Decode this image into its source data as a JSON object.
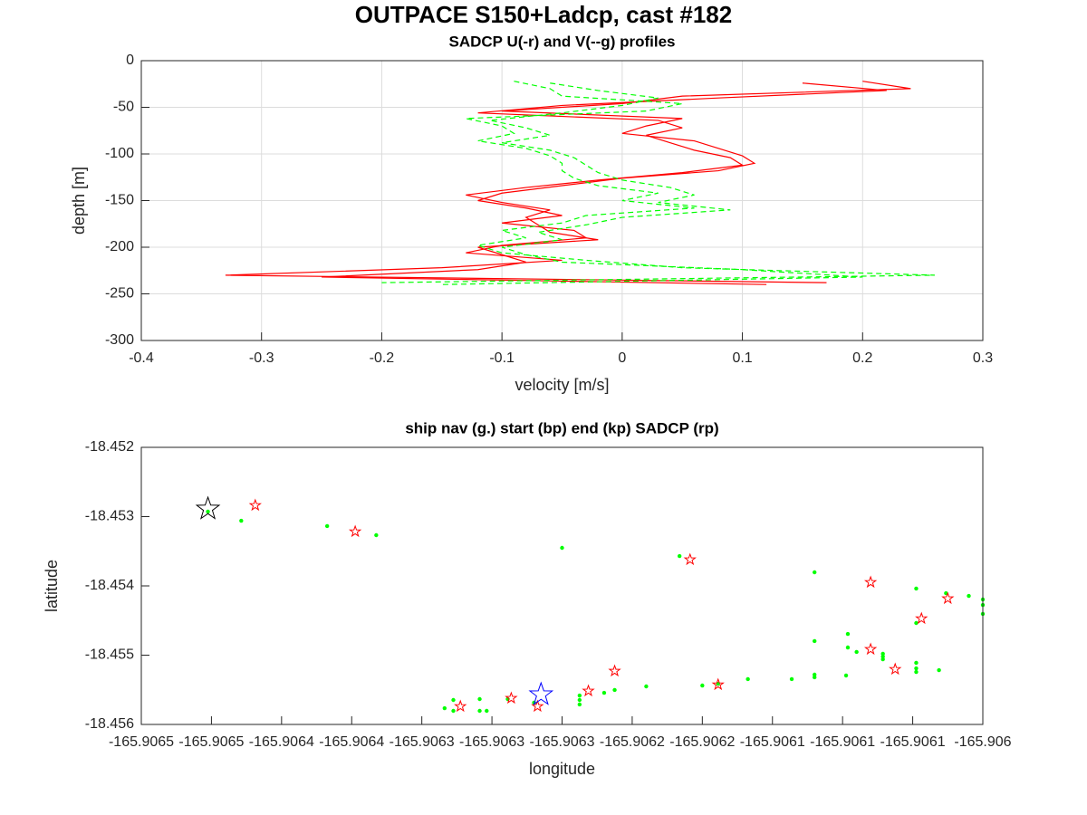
{
  "title": "OUTPACE S150+Ladcp, cast #182",
  "chart_data": [
    {
      "type": "line",
      "title": "SADCP U(-r) and V(--g) profiles",
      "x_label": "velocity [m/s]",
      "y_label": "depth [m]",
      "xlim": [
        -0.4,
        0.3
      ],
      "xticks": [
        -0.4,
        -0.3,
        -0.2,
        -0.1,
        0,
        0.1,
        0.2,
        0.3
      ],
      "ylim": [
        -300,
        0
      ],
      "yticks": [
        -300,
        -250,
        -200,
        -150,
        -100,
        -50,
        0
      ],
      "grid": true,
      "series": [
        {
          "color": "#ff0000",
          "dash": "solid",
          "y": [
            -22,
            -30,
            -38,
            -46,
            -54,
            -62,
            -70,
            -78,
            -86,
            -94,
            -102,
            -110,
            -118,
            -126,
            -134,
            -142,
            -150,
            -158,
            -166,
            -174,
            -182,
            -190,
            -198,
            -206,
            -214,
            -222,
            -230,
            -238
          ],
          "x": [
            0.2,
            0.24,
            0.05,
            0.0,
            -0.1,
            0.05,
            0.02,
            0.0,
            0.06,
            0.08,
            0.1,
            0.11,
            0.08,
            0.0,
            -0.05,
            -0.1,
            -0.12,
            -0.08,
            -0.05,
            -0.1,
            -0.04,
            -0.03,
            -0.1,
            -0.13,
            -0.05,
            -0.15,
            -0.33,
            0.17
          ]
        },
        {
          "color": "#ff0000",
          "dash": "solid",
          "y": [
            -24,
            -32,
            -40,
            -48,
            -56,
            -64,
            -72,
            -80,
            -88,
            -96,
            -104,
            -112,
            -120,
            -128,
            -136,
            -144,
            -152,
            -160,
            -168,
            -176,
            -184,
            -192,
            -200,
            -208,
            -216,
            -224,
            -232,
            -240
          ],
          "x": [
            0.15,
            0.22,
            0.08,
            -0.05,
            -0.12,
            0.03,
            0.05,
            0.02,
            0.04,
            0.06,
            0.09,
            0.1,
            0.05,
            -0.02,
            -0.08,
            -0.13,
            -0.1,
            -0.06,
            -0.08,
            -0.07,
            -0.06,
            -0.02,
            -0.12,
            -0.1,
            -0.08,
            -0.12,
            -0.25,
            0.12
          ]
        },
        {
          "color": "#00ff00",
          "dash": "dashed",
          "y": [
            -22,
            -30,
            -38,
            -46,
            -54,
            -62,
            -70,
            -78,
            -86,
            -94,
            -102,
            -110,
            -118,
            -126,
            -134,
            -142,
            -150,
            -158,
            -166,
            -174,
            -182,
            -190,
            -198,
            -206,
            -214,
            -222,
            -230,
            -238
          ],
          "x": [
            -0.09,
            -0.06,
            -0.05,
            0.05,
            0.02,
            -0.13,
            -0.1,
            -0.09,
            -0.12,
            -0.08,
            -0.06,
            -0.05,
            -0.05,
            -0.04,
            -0.02,
            0.03,
            0.0,
            0.06,
            -0.03,
            -0.05,
            -0.1,
            -0.08,
            -0.12,
            -0.1,
            -0.03,
            0.05,
            0.26,
            -0.2
          ]
        },
        {
          "color": "#00ff00",
          "dash": "dashed",
          "y": [
            -24,
            -32,
            -40,
            -48,
            -56,
            -64,
            -72,
            -80,
            -88,
            -96,
            -104,
            -112,
            -120,
            -128,
            -136,
            -144,
            -152,
            -160,
            -168,
            -176,
            -184,
            -192,
            -200,
            -208,
            -216,
            -224,
            -232,
            -240
          ],
          "x": [
            -0.06,
            -0.02,
            0.03,
            0.0,
            -0.05,
            -0.11,
            -0.08,
            -0.06,
            -0.1,
            -0.06,
            -0.04,
            -0.03,
            -0.02,
            0.0,
            0.04,
            0.06,
            0.03,
            0.09,
            0.0,
            -0.03,
            -0.07,
            -0.05,
            -0.1,
            -0.08,
            -0.05,
            0.1,
            0.2,
            -0.15
          ]
        }
      ]
    },
    {
      "type": "scatter",
      "title": "ship nav (g.) start (bp) end (kp) SADCP (rp)",
      "x_label": "longitude",
      "y_label": "latitude",
      "xlim": [
        -165.9065,
        -165.90602
      ],
      "xticks": [
        {
          "value": -165.9065,
          "label": "-165.9065"
        },
        {
          "value": -165.90646,
          "label": "-165.9065"
        },
        {
          "value": -165.90642,
          "label": "-165.9064"
        },
        {
          "value": -165.90638,
          "label": "-165.9064"
        },
        {
          "value": -165.90634,
          "label": "-165.9063"
        },
        {
          "value": -165.9063,
          "label": "-165.9063"
        },
        {
          "value": -165.90626,
          "label": "-165.9063"
        },
        {
          "value": -165.90622,
          "label": "-165.9062"
        },
        {
          "value": -165.90618,
          "label": "-165.9062"
        },
        {
          "value": -165.90614,
          "label": "-165.9061"
        },
        {
          "value": -165.9061,
          "label": "-165.9061"
        },
        {
          "value": -165.90606,
          "label": "-165.9061"
        },
        {
          "value": -165.90602,
          "label": "-165.906"
        }
      ],
      "ylim": [
        -18.456,
        -18.452
      ],
      "yticks": [
        -18.456,
        -18.455,
        -18.454,
        -18.453,
        -18.452
      ],
      "grid": false,
      "series": [
        {
          "color": "#00ff00",
          "marker": "dot",
          "x": [
            -165.906462,
            -165.906443,
            -165.906394,
            -165.906366,
            -165.90626,
            -165.906193,
            -165.906116,
            -165.906058,
            -165.906058,
            -165.906041,
            -165.906028,
            -165.90602,
            -165.90602,
            -165.906097,
            -165.906116,
            -165.906097,
            -165.906092,
            -165.906077,
            -165.906077,
            -165.906058,
            -165.906058,
            -165.906045,
            -165.906098,
            -165.906116,
            -165.906129,
            -165.906154,
            -165.906171,
            -165.90618,
            -165.906212,
            -165.90623,
            -165.906236,
            -165.90625,
            -165.90625,
            -165.906276,
            -165.906291,
            -165.906307,
            -165.906307,
            -165.906322,
            -165.906322,
            -165.906327,
            -165.906303,
            -165.90602,
            -165.906058,
            -165.906077,
            -165.906116,
            -165.90625
          ],
          "y": [
            -18.452928,
            -18.453059,
            -18.453137,
            -18.453268,
            -18.453451,
            -18.453569,
            -18.453804,
            -18.454039,
            -18.454536,
            -18.454105,
            -18.454144,
            -18.454196,
            -18.454405,
            -18.454693,
            -18.454797,
            -18.454889,
            -18.454954,
            -18.45498,
            -18.455059,
            -18.455111,
            -18.455242,
            -18.455216,
            -18.455294,
            -18.45532,
            -18.455346,
            -18.455346,
            -18.455412,
            -18.455438,
            -18.455451,
            -18.455503,
            -18.455543,
            -18.455582,
            -18.455712,
            -18.455686,
            -18.455634,
            -18.455634,
            -18.455804,
            -18.455647,
            -18.455804,
            -18.455765,
            -18.455804,
            -18.454275,
            -18.45519,
            -18.45502,
            -18.455281,
            -18.455647
          ]
        },
        {
          "color": "#ff0000",
          "marker": "star",
          "x": [
            -165.906435,
            -165.906378,
            -165.906187,
            -165.906084,
            -165.906055,
            -165.90604,
            -165.906084,
            -165.90607,
            -165.90623,
            -165.906171,
            -165.906245,
            -165.906289,
            -165.906318,
            -165.906274
          ],
          "y": [
            -18.452837,
            -18.453216,
            -18.453621,
            -18.453948,
            -18.454471,
            -18.454183,
            -18.454915,
            -18.455203,
            -18.455229,
            -18.455425,
            -18.455516,
            -18.455621,
            -18.455739,
            -18.455739
          ]
        },
        {
          "color": "#000000",
          "marker": "large-star",
          "x": [
            -165.906462
          ],
          "y": [
            -18.452889
          ]
        },
        {
          "color": "#0000ff",
          "marker": "large-star",
          "x": [
            -165.906272
          ],
          "y": [
            -18.455569
          ]
        }
      ]
    }
  ]
}
